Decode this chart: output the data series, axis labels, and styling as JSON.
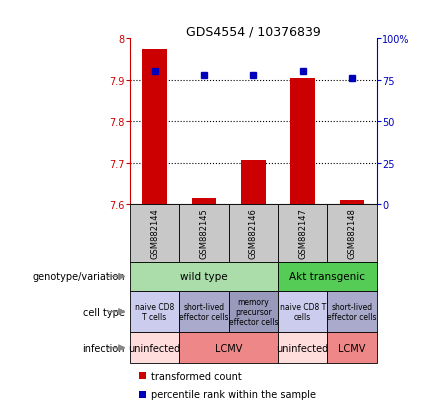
{
  "title": "GDS4554 / 10376839",
  "samples": [
    "GSM882144",
    "GSM882145",
    "GSM882146",
    "GSM882147",
    "GSM882148"
  ],
  "bar_values": [
    7.975,
    7.615,
    7.705,
    7.905,
    7.61
  ],
  "bar_base": 7.6,
  "percentile_values": [
    80,
    78,
    78,
    80,
    76
  ],
  "left_ylim": [
    7.6,
    8.0
  ],
  "right_ylim": [
    0,
    100
  ],
  "left_yticks": [
    7.6,
    7.7,
    7.8,
    7.9,
    8.0
  ],
  "left_yticklabels": [
    "7.6",
    "7.7",
    "7.8",
    "7.9",
    "8"
  ],
  "right_yticks": [
    0,
    25,
    50,
    75,
    100
  ],
  "right_yticklabels": [
    "0",
    "25",
    "50",
    "75",
    "100%"
  ],
  "bar_color": "#cc0000",
  "dot_color": "#0000bb",
  "xticklabel_bg": "#c8c8c8",
  "genotype_cells": [
    {
      "text": "wild type",
      "span": 3,
      "color": "#aaddaa"
    },
    {
      "text": "Akt transgenic",
      "span": 2,
      "color": "#55cc55"
    }
  ],
  "celltype_cells": [
    {
      "text": "naive CD8\nT cells",
      "span": 1,
      "color": "#ccccee"
    },
    {
      "text": "short-lived\neffector cells",
      "span": 1,
      "color": "#aaaacc"
    },
    {
      "text": "memory\nprecursor\neffector cells",
      "span": 1,
      "color": "#9999bb"
    },
    {
      "text": "naive CD8 T\ncells",
      "span": 1,
      "color": "#ccccee"
    },
    {
      "text": "short-lived\neffector cells",
      "span": 1,
      "color": "#aaaacc"
    }
  ],
  "infection_cells": [
    {
      "text": "uninfected",
      "span": 1,
      "color": "#ffdddd"
    },
    {
      "text": "LCMV",
      "span": 2,
      "color": "#ee8888"
    },
    {
      "text": "uninfected",
      "span": 1,
      "color": "#ffdddd"
    },
    {
      "text": "LCMV",
      "span": 1,
      "color": "#ee8888"
    }
  ],
  "row_labels": [
    "genotype/variation",
    "cell type",
    "infection"
  ],
  "legend_items": [
    {
      "color": "#cc0000",
      "label": "transformed count"
    },
    {
      "color": "#0000bb",
      "label": "percentile rank within the sample"
    }
  ]
}
